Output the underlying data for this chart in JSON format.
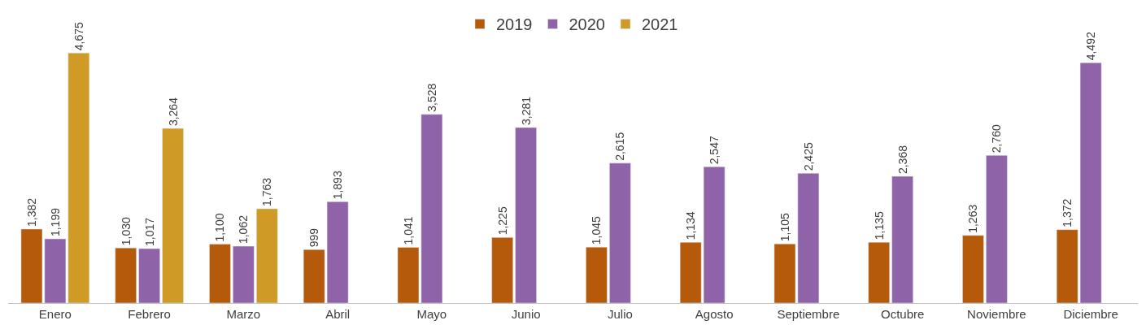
{
  "chart_data": {
    "type": "bar",
    "categories": [
      "Enero",
      "Febrero",
      "Marzo",
      "Abril",
      "Mayo",
      "Junio",
      "Julio",
      "Agosto",
      "Septiembre",
      "Octubre",
      "Noviembre",
      "Diciembre"
    ],
    "series": [
      {
        "name": "2019",
        "color": "#b5590a",
        "values": [
          1382,
          1030,
          1100,
          999,
          1041,
          1225,
          1045,
          1134,
          1105,
          1135,
          1263,
          1372
        ],
        "value_labels": [
          "1,382",
          "1,030",
          "1,100",
          "999",
          "1,041",
          "1,225",
          "1,045",
          "1,134",
          "1,105",
          "1,135",
          "1,263",
          "1,372"
        ]
      },
      {
        "name": "2020",
        "color": "#8e63a8",
        "values": [
          1199,
          1017,
          1062,
          1893,
          3528,
          3281,
          2615,
          2547,
          2425,
          2368,
          2760,
          4492
        ],
        "value_labels": [
          "1,199",
          "1,017",
          "1,062",
          "1,893",
          "3,528",
          "3,281",
          "2,615",
          "2,547",
          "2,425",
          "2,368",
          "2,760",
          "4,492"
        ]
      },
      {
        "name": "2021",
        "color": "#d09a26",
        "values": [
          4675,
          3264,
          1763,
          null,
          null,
          null,
          null,
          null,
          null,
          null,
          null,
          null
        ],
        "value_labels": [
          "4,675",
          "3,264",
          "1,763",
          null,
          null,
          null,
          null,
          null,
          null,
          null,
          null,
          null
        ]
      }
    ],
    "legend": "top"
  }
}
